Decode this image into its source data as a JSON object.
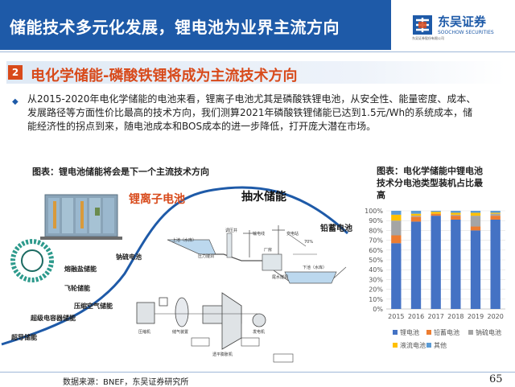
{
  "header": {
    "title": "储能技术多元化发展，锂电池为业界主流方向",
    "logo": {
      "name": "东吴证券",
      "small_text": "东吴证券股份有限公司",
      "english": "SOOCHOW SECURITIES",
      "brand_color": "#1e5aa8"
    }
  },
  "section": {
    "number": "2",
    "title": "电化学储能-磷酸铁锂将成为主流技术方向",
    "accent_color": "#d84a1b"
  },
  "body": {
    "bullet": "◆",
    "lines": [
      "从2015-2020年电化学储能的电池来看，锂离子电池尤其是磷酸铁锂电池，从安全性、能量密度、成本、",
      "发展路径等方面性价比最高的技术方向，我们测算2021年磷酸铁锂储能已达到1.5元/Wh的系统成本，储",
      "能经济性的拐点到来，随电池成本和BOS成本的进一步降低，打开庞大潜在市场。"
    ]
  },
  "left_figure": {
    "caption": "图表：锂电池储能将会是下一个主流技术方向",
    "labels": {
      "lithium": "锂离子电池",
      "pumped": "抽水储能",
      "lead": "铅蓄电池",
      "sodium": "钠硫电池",
      "molten": "熔融盐储能",
      "flywheel": "飞轮储能",
      "caes": "压缩空气储能",
      "supercap": "超级电容器储能",
      "supercond": "超导储能"
    },
    "diagram_text": {
      "upper_pool": "上池（水库）",
      "pressure_pipe": "压力隧洞",
      "surge": "调压井",
      "powerhouse": "厂房",
      "transmission": "输电线",
      "transformer": "变电站",
      "lower_pool": "下池（水库）",
      "tailrace": "尾水隧洞",
      "efficiency": "70%",
      "comp": "压缩机",
      "storage": "储气装置",
      "turbine": "透平膨胀机",
      "gen": "发电机"
    }
  },
  "right_chart": {
    "caption_lines": [
      "图表：电化学储能中锂电池",
      "技术分电池类型装机占比最",
      "高"
    ]
  },
  "chart_data": {
    "type": "bar",
    "stacked": true,
    "categories": [
      "2015",
      "2016",
      "2017",
      "2018",
      "2019",
      "2020"
    ],
    "y_ticks": [
      "0%",
      "10%",
      "20%",
      "30%",
      "40%",
      "50%",
      "60%",
      "70%",
      "80%",
      "90%",
      "100%"
    ],
    "ylim": [
      0,
      100
    ],
    "series": [
      {
        "name": "锂电池",
        "color": "#4472c4",
        "values": [
          67,
          89,
          95,
          91,
          80,
          91
        ]
      },
      {
        "name": "铅蓄电池",
        "color": "#ed7d31",
        "values": [
          8,
          5,
          2,
          4,
          4,
          4
        ]
      },
      {
        "name": "钠硫电池",
        "color": "#a5a5a5",
        "values": [
          15,
          1,
          0,
          1,
          11,
          2
        ]
      },
      {
        "name": "液流电池",
        "color": "#ffc000",
        "values": [
          6,
          2,
          2,
          2,
          3,
          1
        ]
      },
      {
        "name": "其他",
        "color": "#5b9bd5",
        "values": [
          4,
          3,
          1,
          2,
          2,
          2
        ]
      }
    ],
    "legend_position": "bottom",
    "grid": true
  },
  "footer": {
    "source": "数据来源：BNEF，东吴证券研究所",
    "page": "65"
  }
}
